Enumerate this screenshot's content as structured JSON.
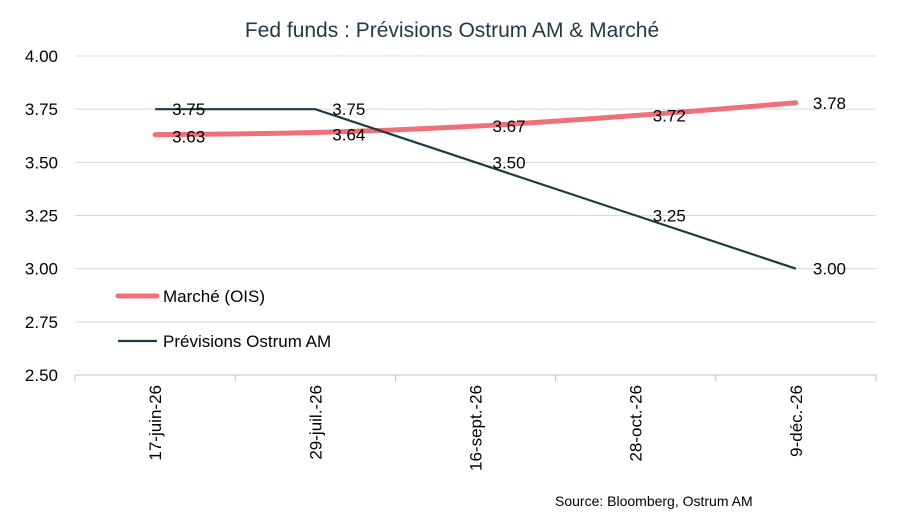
{
  "chart_data": {
    "type": "line",
    "title": "Fed funds : Prévisions Ostrum AM & Marché",
    "xlabel": "",
    "ylabel": "",
    "categories": [
      "17-juin-26",
      "29-juil.-26",
      "16-sept.-26",
      "28-oct.-26",
      "9-déc.-26"
    ],
    "ylim": [
      2.5,
      4.0
    ],
    "yticks": [
      "2.50",
      "2.75",
      "3.00",
      "3.25",
      "3.50",
      "3.75",
      "4.00"
    ],
    "grid": true,
    "legend_position": "lower-left",
    "series": [
      {
        "name": "Marché (OIS)",
        "color": "#f0707a",
        "values": [
          3.63,
          3.64,
          3.67,
          3.72,
          3.78
        ],
        "labels": [
          "3.63",
          "3.64",
          "3.67",
          "3.72",
          "3.78"
        ]
      },
      {
        "name": "Prévisions Ostrum AM",
        "color": "#183d43",
        "values": [
          3.75,
          3.75,
          3.5,
          3.25,
          3.0
        ],
        "labels": [
          "3.75",
          "3.75",
          "3.50",
          "3.25",
          "3.00"
        ]
      }
    ],
    "source": "Source: Bloomberg,  Ostrum AM"
  }
}
